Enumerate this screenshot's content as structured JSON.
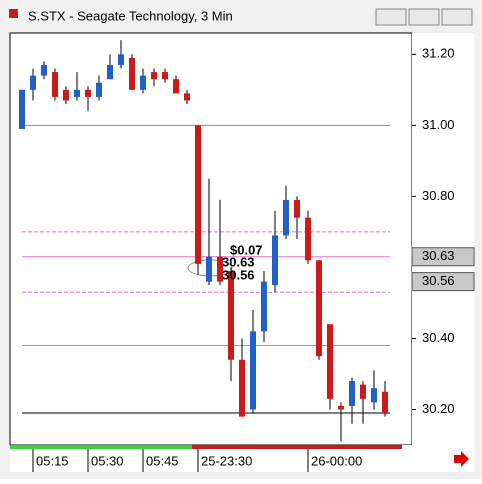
{
  "window_title": "S.STX - Seagate Technology, 3 Min",
  "chart_data": {
    "type": "candlestick",
    "categories": [
      null,
      "05:15",
      null,
      null,
      null,
      null,
      "05:30",
      null,
      null,
      null,
      null,
      "05:45",
      null,
      null,
      null,
      null,
      "25-23:30",
      null,
      null,
      null,
      null,
      null,
      null,
      null,
      null,
      null,
      "26-00:00",
      null,
      null,
      null,
      null,
      null,
      null,
      null
    ],
    "open": [
      30.99,
      31.1,
      31.14,
      31.15,
      31.1,
      31.08,
      31.1,
      31.08,
      31.13,
      31.17,
      31.19,
      31.1,
      31.15,
      31.15,
      31.13,
      31.09,
      31.0,
      30.56,
      30.63,
      30.59,
      30.34,
      30.2,
      30.42,
      30.55,
      30.69,
      30.79,
      30.74,
      30.62,
      30.44,
      30.21,
      30.21,
      30.27,
      30.22,
      30.25
    ],
    "high": [
      31.1,
      31.16,
      31.18,
      31.16,
      31.11,
      31.15,
      31.11,
      31.14,
      31.2,
      31.24,
      31.2,
      31.16,
      31.16,
      31.16,
      31.14,
      31.1,
      31.0,
      30.85,
      30.79,
      30.6,
      30.4,
      30.48,
      30.59,
      30.76,
      30.83,
      30.8,
      30.76,
      30.62,
      30.44,
      30.22,
      30.29,
      30.28,
      30.31,
      30.28
    ],
    "low": [
      30.99,
      31.07,
      31.13,
      31.07,
      31.06,
      31.07,
      31.04,
      31.07,
      31.13,
      31.16,
      31.1,
      31.09,
      31.11,
      31.12,
      31.09,
      31.06,
      30.58,
      30.55,
      30.55,
      30.28,
      30.18,
      30.19,
      30.39,
      30.53,
      30.68,
      30.68,
      30.61,
      30.34,
      30.2,
      30.11,
      30.16,
      30.16,
      30.2,
      30.18
    ],
    "close": [
      31.1,
      31.14,
      31.17,
      31.08,
      31.07,
      31.1,
      31.08,
      31.12,
      31.17,
      31.2,
      31.1,
      31.14,
      31.13,
      31.13,
      31.09,
      31.07,
      30.61,
      30.63,
      30.56,
      30.34,
      30.18,
      30.42,
      30.56,
      30.69,
      30.79,
      30.74,
      30.62,
      30.35,
      30.23,
      30.2,
      30.28,
      30.23,
      30.26,
      30.19
    ],
    "up_color": "#2060c8",
    "down_color": "#cc1a1a",
    "ylim": [
      30.1,
      31.26
    ],
    "yticks": [
      {
        "value": 30.2,
        "label": "30.20"
      },
      {
        "value": 30.4,
        "label": "30.40"
      },
      {
        "value": 30.8,
        "label": "30.80"
      },
      {
        "value": 31.0,
        "label": "31.00"
      },
      {
        "value": 31.2,
        "label": "31.20"
      }
    ],
    "price_markers": [
      {
        "value": 30.63,
        "label": "30.63"
      },
      {
        "value": 30.56,
        "label": "30.56"
      }
    ],
    "levels": [
      {
        "value": 31.0,
        "color": "#888888",
        "dashed": false
      },
      {
        "value": 30.7,
        "color": "#e070d0",
        "dashed": true
      },
      {
        "value": 30.63,
        "color": "#e070d0",
        "dashed": false
      },
      {
        "value": 30.53,
        "color": "#e070d0",
        "dashed": true
      },
      {
        "value": 30.38,
        "color": "#e070d0",
        "dashed": false
      },
      {
        "value": 30.19,
        "color": "#000000",
        "dashed": false
      }
    ],
    "annotations": [
      "$0.07",
      "30.63",
      "30.56"
    ]
  }
}
